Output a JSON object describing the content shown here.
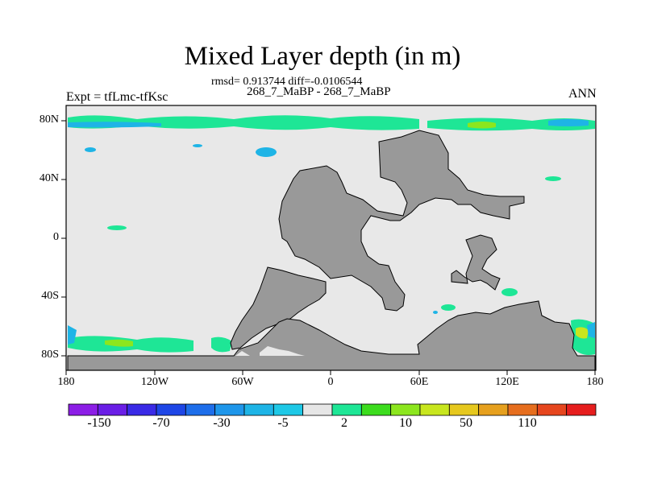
{
  "title": "Mixed Layer depth (in m)",
  "stats_line": "rmsd= 0.913744 diff=-0.0106544",
  "case_line": "268_7_MaBP - 268_7_MaBP",
  "left_label": "Expt = tfLmc-tfKsc",
  "right_label": "ANN",
  "colors": {
    "ocean": "#e8e8e8",
    "land": "#999999",
    "coast": "#000000",
    "palette": [
      "#8c1ee6",
      "#6a1ee6",
      "#3a2ae6",
      "#1e46e6",
      "#1e6eea",
      "#1e96ea",
      "#1eb4e6",
      "#1ec8e6",
      "#e6e6e6",
      "#1ee696",
      "#3cdc1e",
      "#8ce61e",
      "#c8e61e",
      "#e6c81e",
      "#e6a01e",
      "#e66e1e",
      "#e6461e",
      "#e61e1e"
    ]
  },
  "chart_data": {
    "type": "heatmap",
    "projection": "cylindrical-equidistant",
    "xlim": [
      -180,
      180
    ],
    "ylim": [
      -90,
      90
    ],
    "x_ticks": [
      "180",
      "120W",
      "60W",
      "0",
      "60E",
      "120E",
      "180"
    ],
    "y_ticks": [
      "80N",
      "40N",
      "0",
      "40S",
      "80S"
    ],
    "colorbar_labels": [
      "-150",
      "-70",
      "-30",
      "-5",
      "2",
      "10",
      "50",
      "110"
    ],
    "colorbar_levels": 18
  }
}
